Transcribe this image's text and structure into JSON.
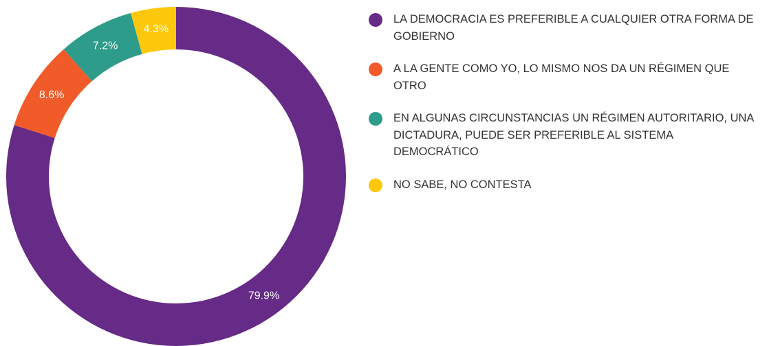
{
  "chart_data": {
    "type": "donut",
    "categories": [
      "LA DEMOCRACIA ES PREFERIBLE A CUALQUIER OTRA FORMA DE GOBIERNO",
      "A LA GENTE COMO YO, LO MISMO NOS DA UN RÉGIMEN QUE OTRO",
      "EN ALGUNAS CIRCUNSTANCIAS UN RÉGIMEN AUTORITARIO, UNA DICTADURA, PUEDE SER PREFERIBLE AL SISTEMA DEMOCRÁTICO",
      "NO SABE, NO CONTESTA"
    ],
    "values": [
      79.9,
      8.6,
      7.2,
      4.3
    ],
    "value_labels": [
      "79.9%",
      "8.6%",
      "7.2%",
      "4.3%"
    ],
    "colors": [
      "#662a87",
      "#f15a29",
      "#2e9c8a",
      "#fdc80c"
    ],
    "legend": "right"
  }
}
